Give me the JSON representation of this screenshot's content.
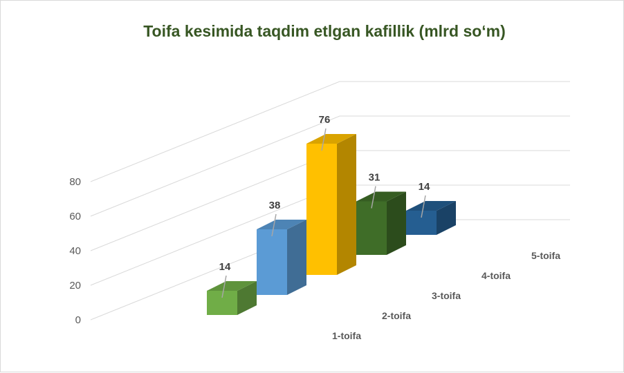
{
  "chart_data": {
    "type": "bar",
    "title": "Toifa kesimida taqdim etlgan kafillik (mlrd so‘m)",
    "categories": [
      "1-toifa",
      "2-toifa",
      "3-toifa",
      "4-toifa",
      "5-toifa"
    ],
    "series": [
      {
        "values": [
          14,
          38,
          76,
          31,
          14
        ]
      }
    ],
    "ylim": [
      0,
      80
    ],
    "yticks": [
      0,
      20,
      40,
      60,
      80
    ],
    "grid": true,
    "data_labels": true,
    "legend": "none",
    "colors": {
      "title": "#375623",
      "bars": [
        "#70ad47",
        "#5b9bd5",
        "#ffc000",
        "#3f6d28",
        "#255e91"
      ],
      "grid": "#d9d9d9"
    }
  }
}
